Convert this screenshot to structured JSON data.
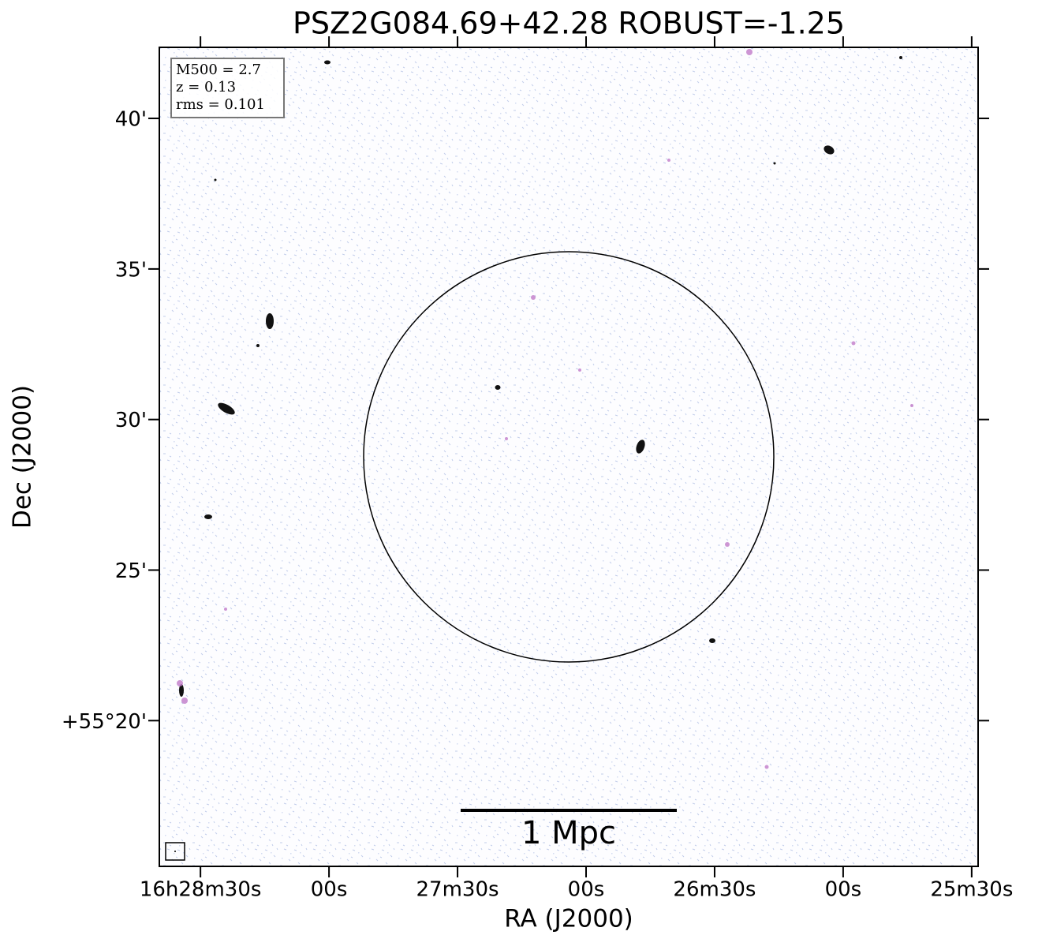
{
  "chart_data": {
    "type": "image",
    "title": "PSZ2G084.69+42.28 ROBUST=-1.25",
    "xlabel": "RA (J2000)",
    "ylabel": "Dec (J2000)",
    "xlim": [
      1719.6,
      1528.5
    ],
    "xticks": [
      {
        "value": 1710,
        "label": "16h28m30s"
      },
      {
        "value": 1680,
        "label": "00s"
      },
      {
        "value": 1650,
        "label": "27m30s"
      },
      {
        "value": 1620,
        "label": "00s"
      },
      {
        "value": 1590,
        "label": "26m30s"
      },
      {
        "value": 1560,
        "label": "00s"
      },
      {
        "value": 1530,
        "label": "25m30s"
      }
    ],
    "ylim": [
      15.16,
      42.36
    ],
    "yticks": [
      {
        "value": 20,
        "label": "+55°20'"
      },
      {
        "value": 25,
        "label": "25'"
      },
      {
        "value": 30,
        "label": "30'"
      },
      {
        "value": 35,
        "label": "35'"
      },
      {
        "value": 40,
        "label": "40'"
      }
    ],
    "annotations": [
      "M500 = 2.7",
      "z = 0.13",
      "rms = 0.101"
    ],
    "scalebar_label": "1 Mpc"
  }
}
